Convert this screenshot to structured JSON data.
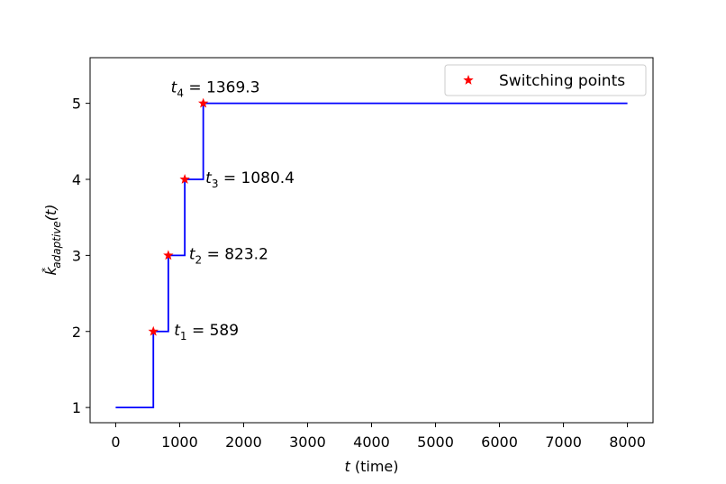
{
  "chart_data": {
    "type": "line",
    "step": true,
    "xlim": [
      -400,
      8400
    ],
    "ylim": [
      0.8,
      5.6
    ],
    "xticks": [
      0,
      1000,
      2000,
      3000,
      4000,
      5000,
      6000,
      7000,
      8000
    ],
    "yticks": [
      1,
      2,
      3,
      4,
      5
    ],
    "xlabel_var": "t",
    "xlabel_rest": " (time)",
    "ylabel_main": "k",
    "ylabel_sup": "*",
    "ylabel_sub": "adaptive",
    "ylabel_tail": "(t)",
    "grid": false,
    "legend": {
      "position": "top-right",
      "label": "Switching points"
    },
    "series": [
      {
        "kind": "step-line",
        "color": "#0000ff",
        "x": [
          0,
          589,
          589,
          823.2,
          823.2,
          1080.4,
          1080.4,
          1369.3,
          1369.3,
          8000
        ],
        "y": [
          1,
          1,
          2,
          2,
          3,
          3,
          4,
          4,
          5,
          5
        ]
      },
      {
        "kind": "markers",
        "name": "Switching points",
        "color": "#ff0000",
        "x": [
          589,
          823.2,
          1080.4,
          1369.3
        ],
        "y": [
          2,
          3,
          4,
          5
        ]
      }
    ],
    "annotations": [
      {
        "var": "t",
        "sub": "1",
        "text": " = 589",
        "x": 589,
        "y": 2
      },
      {
        "var": "t",
        "sub": "2",
        "text": " = 823.2",
        "x": 823.2,
        "y": 3
      },
      {
        "var": "t",
        "sub": "3",
        "text": " = 1080.4",
        "x": 1080.4,
        "y": 4
      },
      {
        "var": "t",
        "sub": "4",
        "text": " = 1369.3",
        "x": 1369.3,
        "y": 5
      }
    ]
  }
}
